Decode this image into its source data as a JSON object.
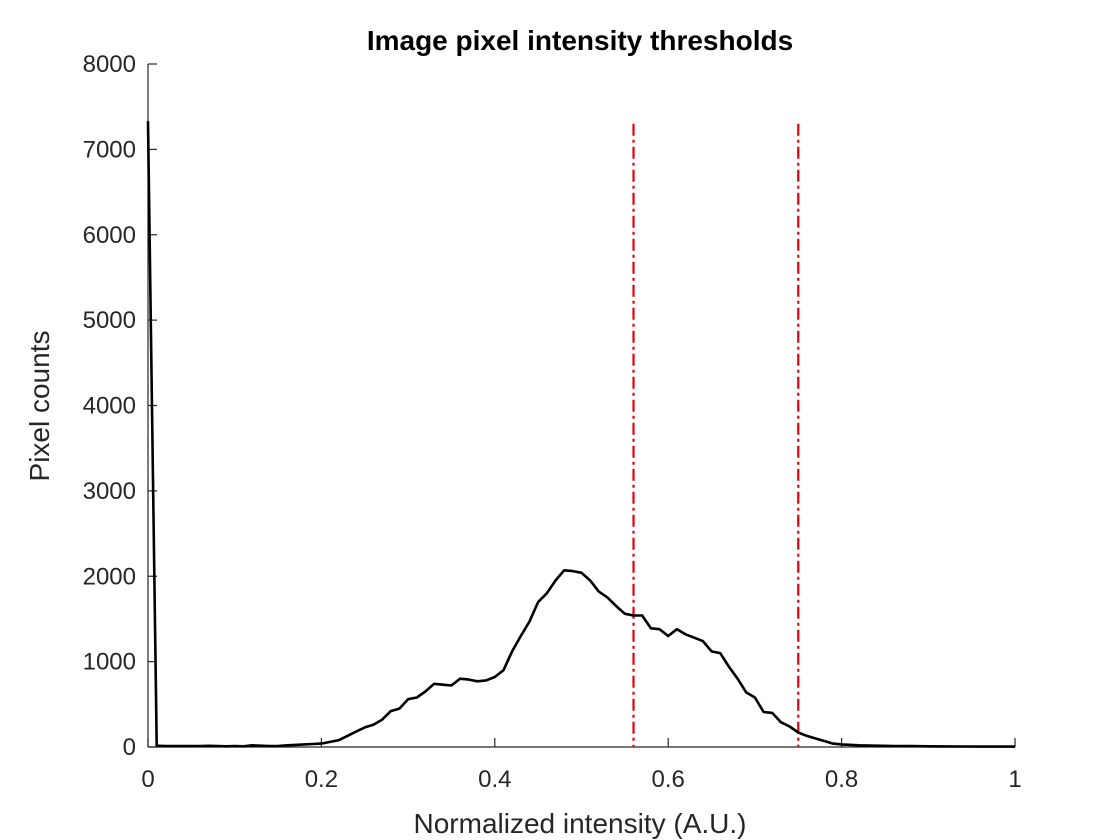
{
  "chart_data": {
    "type": "line",
    "title": "Image pixel intensity thresholds",
    "xlabel": "Normalized intensity (A.U.)",
    "ylabel": "Pixel counts",
    "xlim": [
      0,
      1
    ],
    "ylim": [
      0,
      8000
    ],
    "xticks": [
      0,
      0.2,
      0.4,
      0.6,
      0.8,
      1
    ],
    "xtick_labels": [
      "0",
      "0.2",
      "0.4",
      "0.6",
      "0.8",
      "1"
    ],
    "yticks": [
      0,
      1000,
      2000,
      3000,
      4000,
      5000,
      6000,
      7000,
      8000
    ],
    "ytick_labels": [
      "0",
      "1000",
      "2000",
      "3000",
      "4000",
      "5000",
      "6000",
      "7000",
      "8000"
    ],
    "grid": false,
    "series": [
      {
        "color": "#000000",
        "x": [
          0,
          0.01,
          0.02,
          0.03,
          0.04,
          0.05,
          0.06,
          0.07,
          0.08,
          0.09,
          0.1,
          0.11,
          0.12,
          0.13,
          0.14,
          0.15,
          0.16,
          0.17,
          0.18,
          0.19,
          0.2,
          0.21,
          0.22,
          0.23,
          0.24,
          0.25,
          0.26,
          0.27,
          0.28,
          0.29,
          0.3,
          0.31,
          0.32,
          0.33,
          0.34,
          0.35,
          0.36,
          0.37,
          0.38,
          0.39,
          0.4,
          0.41,
          0.42,
          0.43,
          0.44,
          0.45,
          0.46,
          0.47,
          0.48,
          0.49,
          0.5,
          0.51,
          0.52,
          0.53,
          0.54,
          0.55,
          0.56,
          0.57,
          0.58,
          0.59,
          0.6,
          0.61,
          0.62,
          0.63,
          0.64,
          0.65,
          0.66,
          0.67,
          0.68,
          0.69,
          0.7,
          0.71,
          0.72,
          0.73,
          0.74,
          0.75,
          0.76,
          0.77,
          0.78,
          0.79,
          0.8,
          0.82,
          0.84,
          0.86,
          0.88,
          0.9,
          0.92,
          0.94,
          0.96,
          0.98,
          1.0
        ],
        "y": [
          7330,
          15,
          12,
          10,
          12,
          10,
          12,
          14,
          12,
          8,
          10,
          8,
          20,
          15,
          10,
          12,
          20,
          25,
          30,
          35,
          40,
          60,
          80,
          130,
          180,
          230,
          260,
          320,
          420,
          450,
          560,
          580,
          650,
          740,
          730,
          720,
          800,
          790,
          770,
          780,
          820,
          900,
          1120,
          1300,
          1470,
          1700,
          1800,
          1950,
          2070,
          2060,
          2040,
          1950,
          1820,
          1750,
          1650,
          1560,
          1540,
          1540,
          1390,
          1380,
          1300,
          1380,
          1320,
          1280,
          1240,
          1120,
          1100,
          940,
          800,
          640,
          580,
          410,
          400,
          290,
          240,
          170,
          130,
          100,
          70,
          40,
          30,
          20,
          15,
          12,
          10,
          8,
          7,
          6,
          5,
          5,
          5
        ]
      }
    ],
    "thresholds": [
      {
        "x": 0.56,
        "y_top": 7300,
        "color": "#e8000b",
        "style": "dash-dot"
      },
      {
        "x": 0.75,
        "y_top": 7300,
        "color": "#e8000b",
        "style": "dash-dot"
      }
    ]
  }
}
